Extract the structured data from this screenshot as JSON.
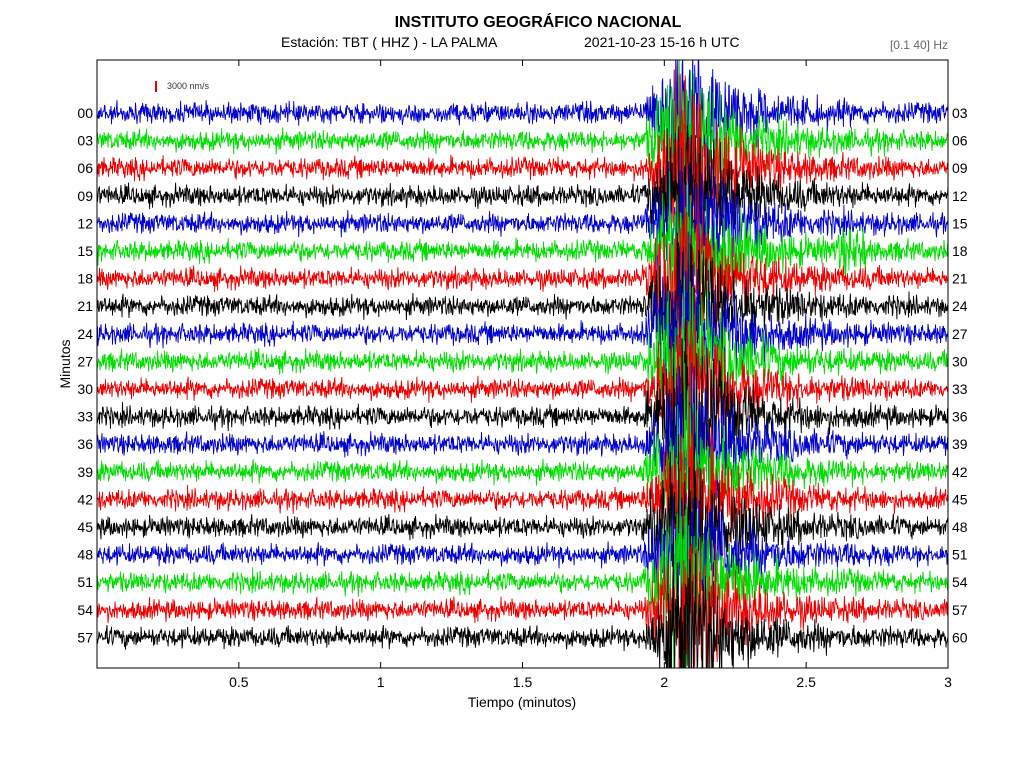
{
  "header": {
    "title": "INSTITUTO GEOGRÁFICO NACIONAL",
    "station": "Estación:  TBT ( HHZ ) - LA PALMA",
    "datetime": "2021-10-23  15-16 h UTC",
    "filter": "[0.1 40] Hz",
    "scale_label": "3000 nm/s"
  },
  "chart_data": {
    "type": "line",
    "xlabel": "Tiempo (minutos)",
    "ylabel": "Minutos",
    "xlim": [
      0,
      3
    ],
    "xticks": [
      0.5,
      1,
      1.5,
      2,
      2.5,
      3
    ],
    "xtick_labels": [
      "0.5",
      "1",
      "1.5",
      "2",
      "2.5",
      "3"
    ],
    "left_labels": [
      "00",
      "03",
      "06",
      "09",
      "12",
      "15",
      "18",
      "21",
      "24",
      "27",
      "30",
      "33",
      "36",
      "39",
      "42",
      "45",
      "48",
      "51",
      "54",
      "57"
    ],
    "right_labels": [
      "03",
      "06",
      "09",
      "12",
      "15",
      "18",
      "21",
      "24",
      "27",
      "30",
      "33",
      "36",
      "39",
      "42",
      "45",
      "48",
      "51",
      "54",
      "57",
      "60"
    ],
    "trace_colors": [
      "#0000cc",
      "#00dd00",
      "#ee0000",
      "#000000"
    ],
    "scale_bar_color": "#ee0000",
    "event": {
      "onset_min": 1.92,
      "peak_min": 2.05,
      "strong_end_min": 2.12,
      "coda_end_min": 2.85
    },
    "small_event": {
      "row": 5,
      "at_min": 2.66
    }
  }
}
